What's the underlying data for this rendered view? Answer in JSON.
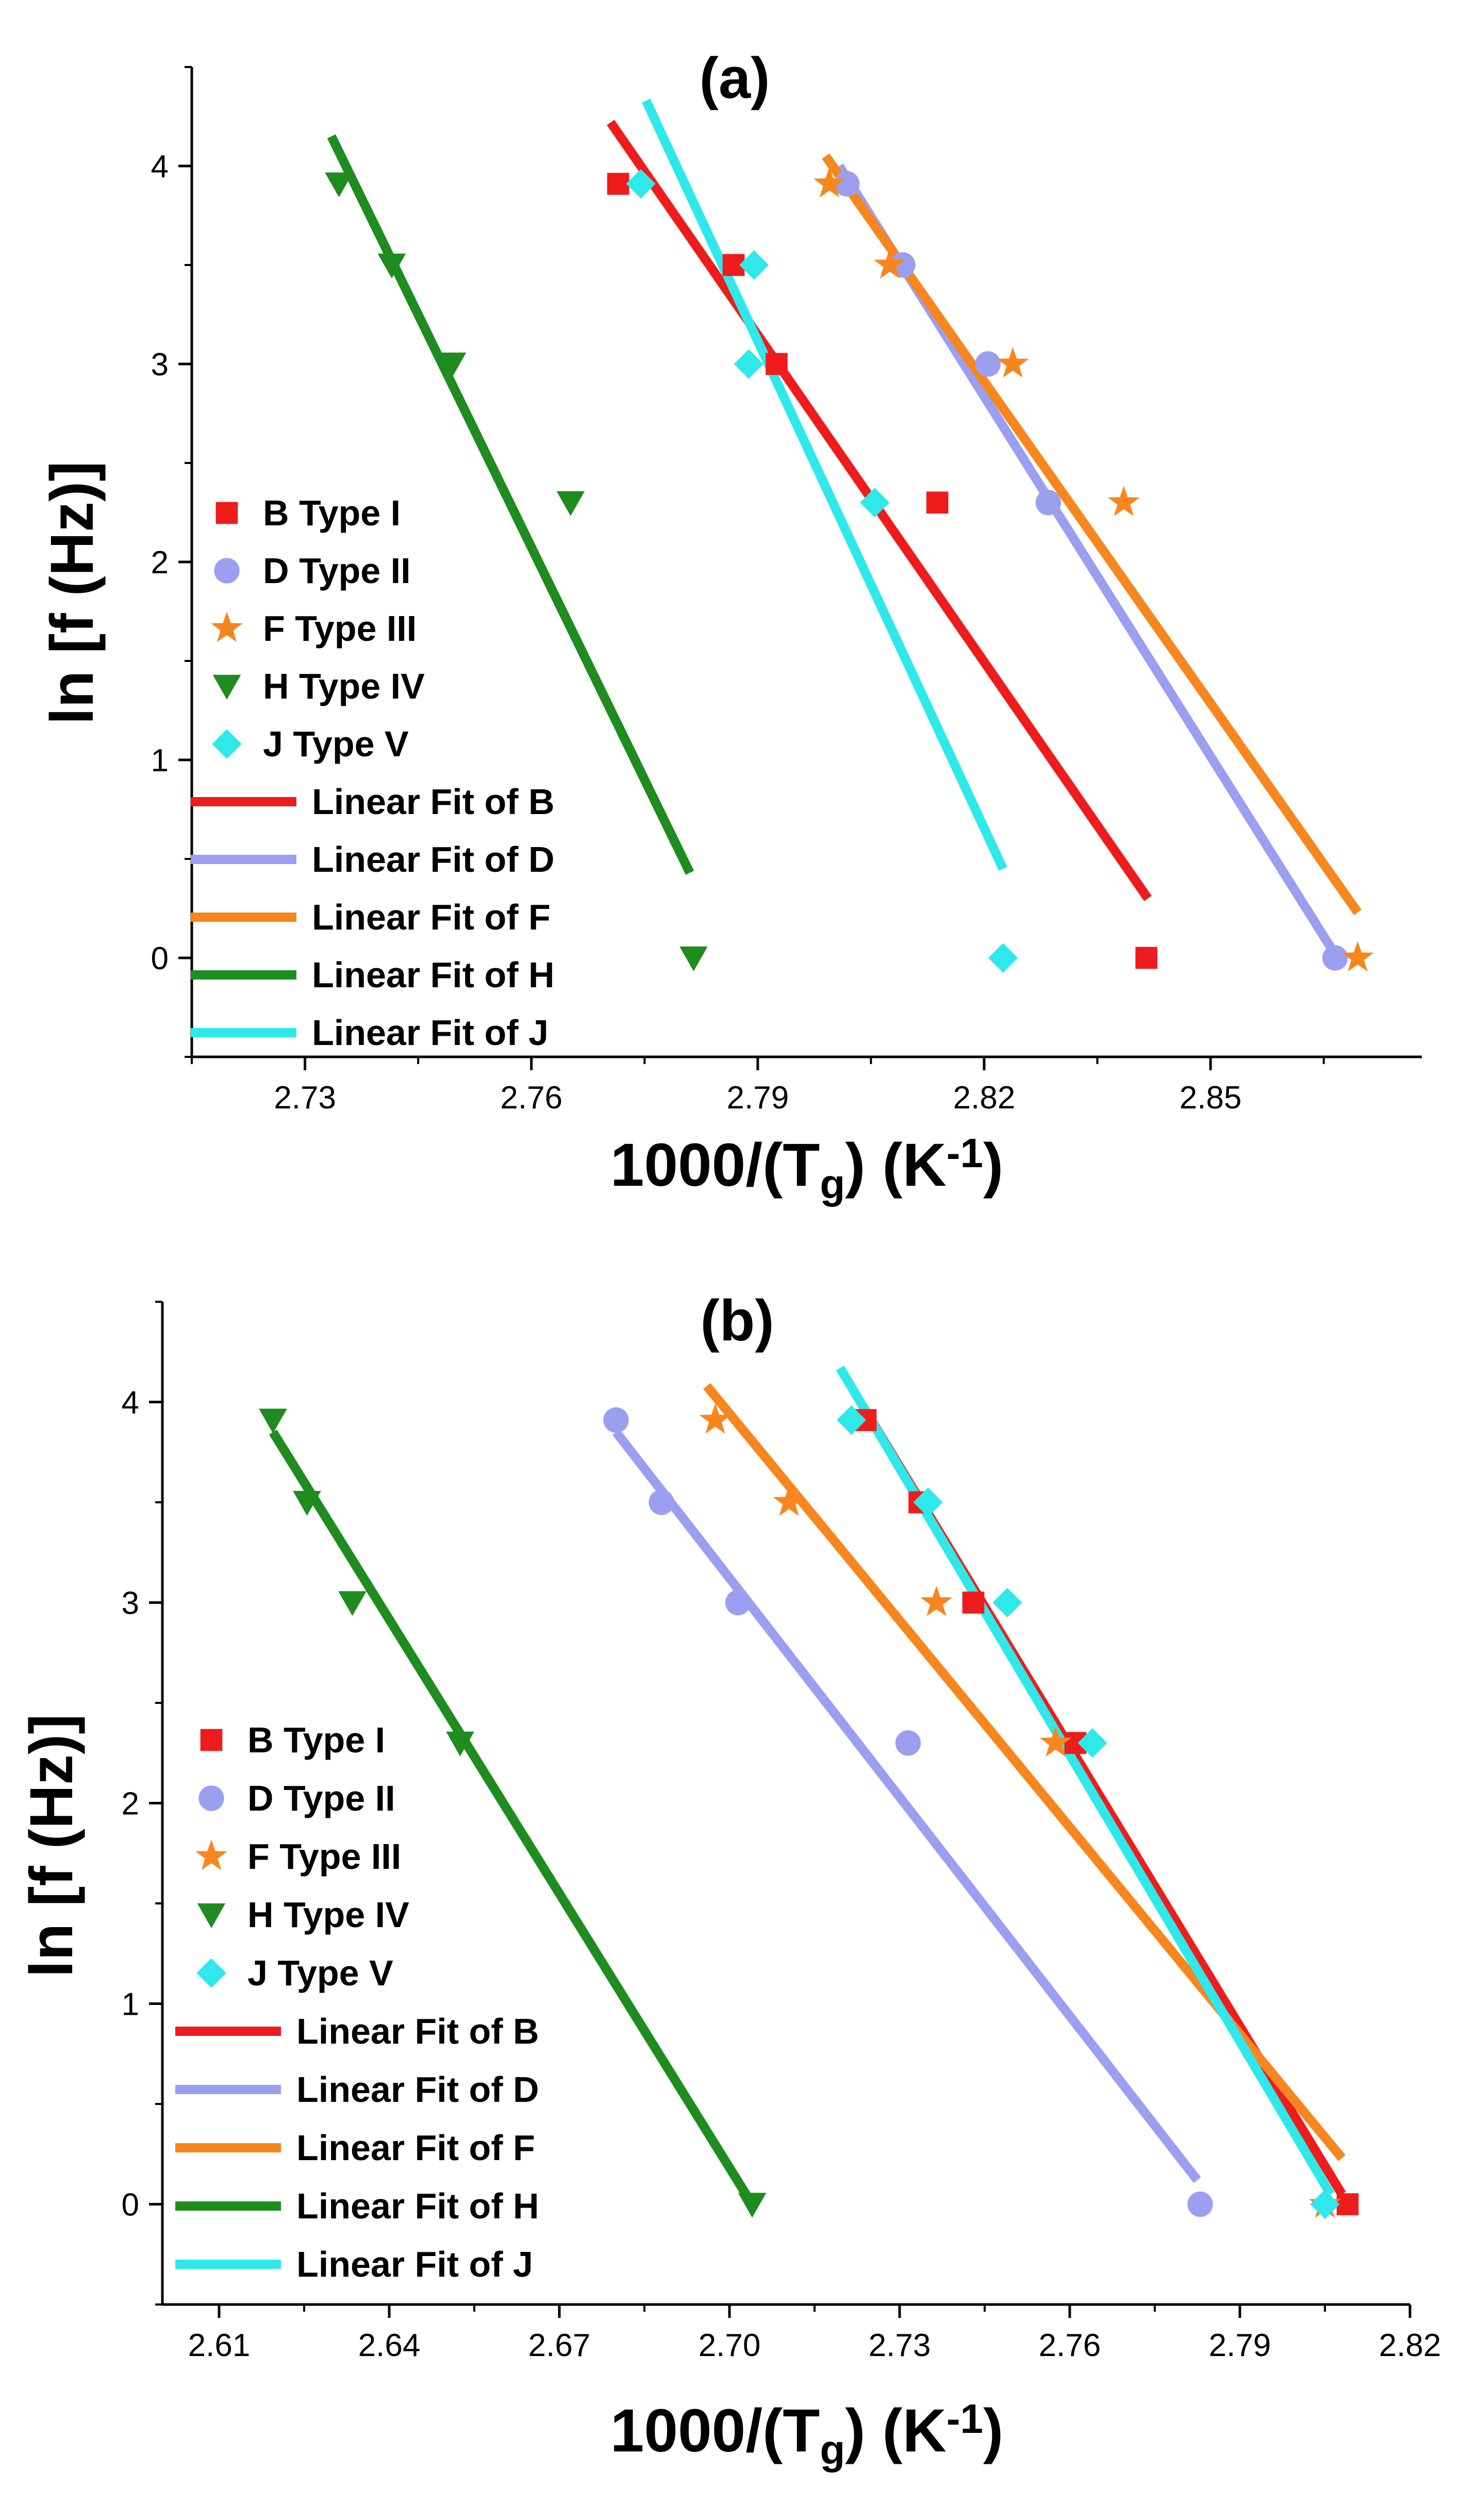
{
  "chart_data": [
    {
      "type": "scatter",
      "panel": "(a)",
      "title": "(a)",
      "xlabel_main": "1000/(T",
      "xlabel_sub": "g",
      "xlabel_mid": ") (K",
      "xlabel_sup": "-1",
      "xlabel_end": ")",
      "ylabel": "ln [f (Hz)]",
      "xlim": [
        2.715,
        2.878
      ],
      "ylim": [
        -0.5,
        4.5
      ],
      "xticks": [
        2.73,
        2.76,
        2.79,
        2.82,
        2.85
      ],
      "xtick_labels": [
        "2.73",
        "2.76",
        "2.79",
        "2.82",
        "2.85"
      ],
      "yticks": [
        0,
        1,
        2,
        3,
        4
      ],
      "ytick_labels": [
        "0",
        "1",
        "2",
        "3",
        "4"
      ],
      "series": [
        {
          "name": "B Type I",
          "marker": "square",
          "color": "#ee1c1c",
          "x": [
            2.7715,
            2.7868,
            2.7925,
            2.8138,
            2.8415
          ],
          "y": [
            3.91,
            3.5,
            3.0,
            2.3,
            0.0
          ]
        },
        {
          "name": "D Type II",
          "marker": "circle",
          "color": "#9b9ff0",
          "x": [
            2.8018,
            2.8092,
            2.8205,
            2.8285,
            2.8665
          ],
          "y": [
            3.91,
            3.5,
            3.0,
            2.3,
            0.0
          ]
        },
        {
          "name": "F Type III",
          "marker": "star",
          "color": "#f7861e",
          "x": [
            2.7995,
            2.8075,
            2.8238,
            2.8385,
            2.8695
          ],
          "y": [
            3.91,
            3.5,
            3.0,
            2.3,
            0.0
          ]
        },
        {
          "name": "H Type IV",
          "marker": "triangle-down",
          "color": "#1e8c1e",
          "x": [
            2.7345,
            2.7415,
            2.7495,
            2.7652,
            2.7815
          ],
          "y": [
            3.91,
            3.5,
            3.0,
            2.3,
            0.0
          ]
        },
        {
          "name": "J Type V",
          "marker": "diamond",
          "color": "#2ee8ea",
          "x": [
            2.7745,
            2.7895,
            2.7888,
            2.8055,
            2.8225
          ],
          "y": [
            3.91,
            3.5,
            3.0,
            2.3,
            0.0
          ]
        }
      ],
      "fits": [
        {
          "name": "Linear Fit of B",
          "color": "#ee1c1c",
          "x": [
            2.7705,
            2.8417
          ],
          "y": [
            4.22,
            0.3
          ]
        },
        {
          "name": "Linear Fit of D",
          "color": "#9b9ff0",
          "x": [
            2.8008,
            2.8668
          ],
          "y": [
            4.0,
            0.0
          ]
        },
        {
          "name": "Linear Fit of F",
          "color": "#f7861e",
          "x": [
            2.799,
            2.8695
          ],
          "y": [
            4.05,
            0.23
          ]
        },
        {
          "name": "Linear Fit of H",
          "color": "#1e8c1e",
          "x": [
            2.7335,
            2.781
          ],
          "y": [
            4.15,
            0.43
          ]
        },
        {
          "name": "Linear Fit of J",
          "color": "#2ee8ea",
          "x": [
            2.7752,
            2.8225
          ],
          "y": [
            4.33,
            0.45
          ]
        }
      ]
    },
    {
      "type": "scatter",
      "panel": "(b)",
      "title": "(b)",
      "xlabel_main": "1000/(T",
      "xlabel_sub": "g",
      "xlabel_mid": ") (K",
      "xlabel_sup": "-1",
      "xlabel_end": ")",
      "ylabel": "ln [f (Hz)]",
      "xlim": [
        2.6,
        2.82
      ],
      "ylim": [
        -0.5,
        4.5
      ],
      "xticks": [
        2.61,
        2.64,
        2.67,
        2.7,
        2.73,
        2.76,
        2.79,
        2.82
      ],
      "xtick_labels": [
        "2.61",
        "2.64",
        "2.67",
        "2.70",
        "2.73",
        "2.76",
        "2.79",
        "2.82"
      ],
      "yticks": [
        0,
        1,
        2,
        3,
        4
      ],
      "ytick_labels": [
        "0",
        "1",
        "2",
        "3",
        "4"
      ],
      "series": [
        {
          "name": "B Type I",
          "marker": "square",
          "color": "#ee1c1c",
          "x": [
            2.724,
            2.7335,
            2.743,
            2.761,
            2.809
          ],
          "y": [
            3.91,
            3.5,
            3.0,
            2.3,
            0.0
          ]
        },
        {
          "name": "D Type II",
          "marker": "circle",
          "color": "#9b9ff0",
          "x": [
            2.68,
            2.688,
            2.7015,
            2.7315,
            2.783
          ],
          "y": [
            3.91,
            3.5,
            3.0,
            2.3,
            0.0
          ]
        },
        {
          "name": "F Type III",
          "marker": "star",
          "color": "#f7861e",
          "x": [
            2.6975,
            2.7105,
            2.7365,
            2.7575,
            2.805
          ],
          "y": [
            3.91,
            3.5,
            3.0,
            2.3,
            0.0
          ]
        },
        {
          "name": "H Type IV",
          "marker": "triangle-down",
          "color": "#1e8c1e",
          "x": [
            2.6195,
            2.6255,
            2.6335,
            2.6525,
            2.704
          ],
          "y": [
            3.91,
            3.5,
            3.0,
            2.3,
            0.0
          ]
        },
        {
          "name": "J Type V",
          "marker": "diamond",
          "color": "#2ee8ea",
          "x": [
            2.7215,
            2.735,
            2.749,
            2.764,
            2.805
          ],
          "y": [
            3.91,
            3.5,
            3.0,
            2.3,
            0.0
          ]
        }
      ],
      "fits": [
        {
          "name": "Linear Fit of B",
          "color": "#ee1c1c",
          "x": [
            2.7235,
            2.808
          ],
          "y": [
            3.98,
            0.05
          ]
        },
        {
          "name": "Linear Fit of D",
          "color": "#9b9ff0",
          "x": [
            2.68,
            2.7825
          ],
          "y": [
            3.85,
            0.12
          ]
        },
        {
          "name": "Linear Fit of F",
          "color": "#f7861e",
          "x": [
            2.696,
            2.808
          ],
          "y": [
            4.08,
            0.23
          ]
        },
        {
          "name": "Linear Fit of H",
          "color": "#1e8c1e",
          "x": [
            2.6195,
            2.704
          ],
          "y": [
            3.85,
            0.0
          ]
        },
        {
          "name": "Linear Fit of J",
          "color": "#2ee8ea",
          "x": [
            2.7195,
            2.806
          ],
          "y": [
            4.17,
            0.05
          ]
        }
      ]
    }
  ]
}
